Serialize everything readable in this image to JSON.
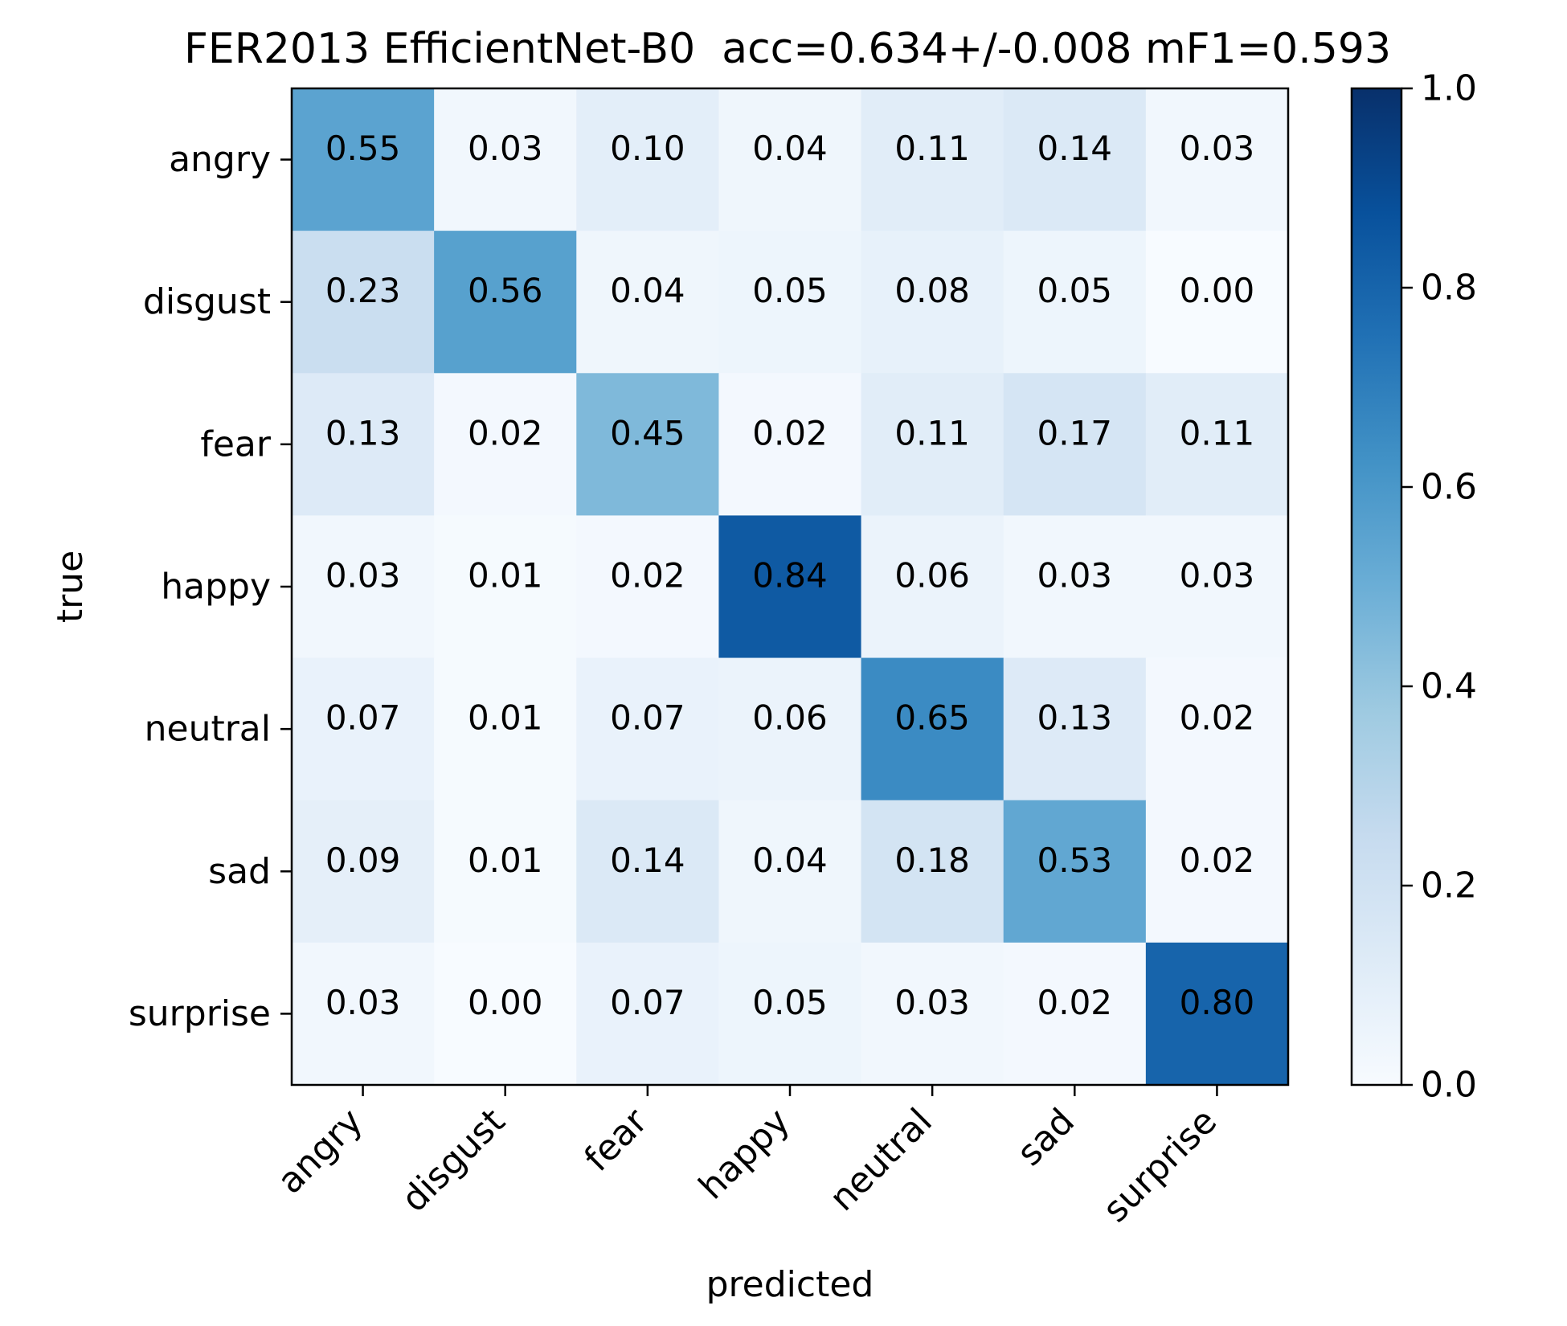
{
  "chart_data": {
    "type": "heatmap",
    "title": "FER2013 EfficientNet-B0  acc=0.634+/-0.008 mF1=0.593",
    "xlabel": "predicted",
    "ylabel": "true",
    "x_categories": [
      "angry",
      "disgust",
      "fear",
      "happy",
      "neutral",
      "sad",
      "surprise"
    ],
    "y_categories": [
      "angry",
      "disgust",
      "fear",
      "happy",
      "neutral",
      "sad",
      "surprise"
    ],
    "values": [
      [
        0.55,
        0.03,
        0.1,
        0.04,
        0.11,
        0.14,
        0.03
      ],
      [
        0.23,
        0.56,
        0.04,
        0.05,
        0.08,
        0.05,
        0.0
      ],
      [
        0.13,
        0.02,
        0.45,
        0.02,
        0.11,
        0.17,
        0.11
      ],
      [
        0.03,
        0.01,
        0.02,
        0.84,
        0.06,
        0.03,
        0.03
      ],
      [
        0.07,
        0.01,
        0.07,
        0.06,
        0.65,
        0.13,
        0.02
      ],
      [
        0.09,
        0.01,
        0.14,
        0.04,
        0.18,
        0.53,
        0.02
      ],
      [
        0.03,
        0.0,
        0.07,
        0.05,
        0.03,
        0.02,
        0.8
      ]
    ],
    "colormap": "Blues",
    "value_range": [
      0.0,
      1.0
    ],
    "colorbar_ticks": [
      "0.0",
      "0.2",
      "0.4",
      "0.6",
      "0.8",
      "1.0"
    ],
    "legend": "colorbar right"
  }
}
